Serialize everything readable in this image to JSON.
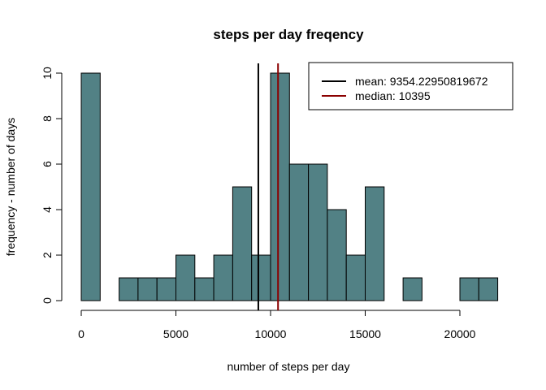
{
  "chart_data": {
    "type": "bar",
    "title": "steps per day freqency",
    "xlabel": "number of steps per day",
    "ylabel": "frequency - number of days",
    "bin_width": 1000,
    "bins": [
      {
        "from": 0,
        "to": 1000,
        "count": 10
      },
      {
        "from": 1000,
        "to": 2000,
        "count": 0
      },
      {
        "from": 2000,
        "to": 3000,
        "count": 1
      },
      {
        "from": 3000,
        "to": 4000,
        "count": 1
      },
      {
        "from": 4000,
        "to": 5000,
        "count": 1
      },
      {
        "from": 5000,
        "to": 6000,
        "count": 2
      },
      {
        "from": 6000,
        "to": 7000,
        "count": 1
      },
      {
        "from": 7000,
        "to": 8000,
        "count": 2
      },
      {
        "from": 8000,
        "to": 9000,
        "count": 5
      },
      {
        "from": 9000,
        "to": 10000,
        "count": 2
      },
      {
        "from": 10000,
        "to": 11000,
        "count": 10
      },
      {
        "from": 11000,
        "to": 12000,
        "count": 6
      },
      {
        "from": 12000,
        "to": 13000,
        "count": 6
      },
      {
        "from": 13000,
        "to": 14000,
        "count": 4
      },
      {
        "from": 14000,
        "to": 15000,
        "count": 2
      },
      {
        "from": 15000,
        "to": 16000,
        "count": 5
      },
      {
        "from": 16000,
        "to": 17000,
        "count": 0
      },
      {
        "from": 17000,
        "to": 18000,
        "count": 1
      },
      {
        "from": 18000,
        "to": 19000,
        "count": 0
      },
      {
        "from": 19000,
        "to": 20000,
        "count": 0
      },
      {
        "from": 20000,
        "to": 21000,
        "count": 1
      },
      {
        "from": 21000,
        "to": 22000,
        "count": 1
      }
    ],
    "xlim": [
      0,
      22000
    ],
    "ylim": [
      0,
      10
    ],
    "x_ticks": [
      0,
      5000,
      10000,
      15000,
      20000
    ],
    "x_tick_labels": [
      "0",
      "5000",
      "10000",
      "15000",
      "20000"
    ],
    "y_ticks": [
      0,
      2,
      4,
      6,
      8,
      10
    ],
    "y_tick_labels": [
      "0",
      "2",
      "4",
      "6",
      "8",
      "10"
    ],
    "bar_color": "#528185",
    "bar_border_color": "#000000",
    "grid": false,
    "reference_lines": [
      {
        "label": "mean: 9354.22950819672",
        "value": 9354.22950819672,
        "color": "#000000"
      },
      {
        "label": "median: 10395",
        "value": 10395,
        "color": "#8b0000"
      }
    ],
    "legend_position": "top-right"
  }
}
